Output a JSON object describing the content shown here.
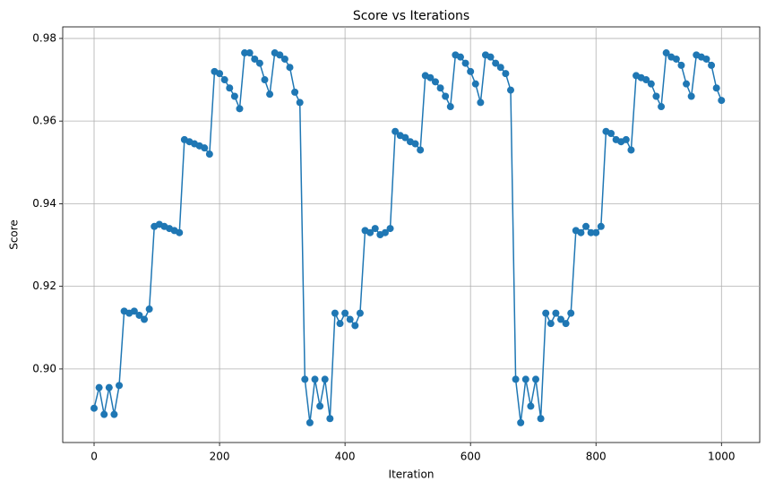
{
  "chart_data": {
    "type": "line",
    "title": "Score vs Iterations",
    "x_label": "Iteration",
    "y_label": "Score",
    "xlim": [
      -50,
      1061
    ],
    "ylim": [
      0.8822,
      0.9828
    ],
    "xticks": [
      0,
      200,
      400,
      600,
      800,
      1000
    ],
    "yticks": [
      {
        "value": 0.9,
        "label": "0.90"
      },
      0.92,
      0.94,
      0.96,
      0.98
    ],
    "grid": true,
    "markers": true,
    "series": [
      {
        "name": "Score",
        "color": "#1f77b4",
        "x": [
          0,
          8,
          16,
          24,
          32,
          40,
          48,
          56,
          64,
          72,
          80,
          88,
          96,
          104,
          112,
          120,
          128,
          136,
          144,
          152,
          160,
          168,
          176,
          184,
          192,
          200,
          208,
          216,
          224,
          232,
          240,
          248,
          256,
          264,
          272,
          280,
          288,
          296,
          304,
          312,
          320,
          328,
          336,
          344,
          352,
          360,
          368,
          376,
          384,
          392,
          400,
          408,
          416,
          424,
          432,
          440,
          448,
          456,
          464,
          472,
          480,
          488,
          496,
          504,
          512,
          520,
          528,
          536,
          544,
          552,
          560,
          568,
          576,
          584,
          592,
          600,
          608,
          616,
          624,
          632,
          640,
          648,
          656,
          664,
          672,
          680,
          688,
          696,
          704,
          712,
          720,
          728,
          736,
          744,
          752,
          760,
          768,
          776,
          784,
          792,
          800,
          808,
          816,
          824,
          832,
          840,
          848,
          856,
          864,
          872,
          880,
          888,
          896,
          904,
          912,
          920,
          928,
          936,
          944,
          952,
          960,
          968,
          976,
          984,
          992,
          1000
        ],
        "values": [
          0.8905,
          0.8955,
          0.889,
          0.8955,
          0.889,
          0.896,
          0.914,
          0.9135,
          0.914,
          0.913,
          0.912,
          0.9145,
          0.9345,
          0.935,
          0.9345,
          0.934,
          0.9335,
          0.933,
          0.9555,
          0.955,
          0.9545,
          0.954,
          0.9535,
          0.952,
          0.972,
          0.9715,
          0.97,
          0.968,
          0.966,
          0.963,
          0.9765,
          0.9765,
          0.975,
          0.974,
          0.97,
          0.9665,
          0.9765,
          0.976,
          0.975,
          0.973,
          0.967,
          0.9645,
          0.8975,
          0.887,
          0.8975,
          0.891,
          0.8975,
          0.888,
          0.9135,
          0.911,
          0.9135,
          0.912,
          0.9105,
          0.9135,
          0.9335,
          0.933,
          0.934,
          0.9325,
          0.933,
          0.934,
          0.9575,
          0.9565,
          0.956,
          0.955,
          0.9545,
          0.953,
          0.971,
          0.9705,
          0.9695,
          0.968,
          0.966,
          0.9635,
          0.976,
          0.9755,
          0.974,
          0.972,
          0.969,
          0.9645,
          0.976,
          0.9755,
          0.974,
          0.973,
          0.9715,
          0.9675,
          0.8975,
          0.887,
          0.8975,
          0.891,
          0.8975,
          0.888,
          0.9135,
          0.911,
          0.9135,
          0.912,
          0.911,
          0.9135,
          0.9335,
          0.933,
          0.9345,
          0.933,
          0.933,
          0.9345,
          0.9575,
          0.957,
          0.9555,
          0.955,
          0.9555,
          0.953,
          0.971,
          0.9705,
          0.97,
          0.969,
          0.966,
          0.9635,
          0.9765,
          0.9755,
          0.975,
          0.9735,
          0.969,
          0.966,
          0.976,
          0.9755,
          0.975,
          0.9735,
          0.968,
          0.965
        ]
      }
    ]
  }
}
